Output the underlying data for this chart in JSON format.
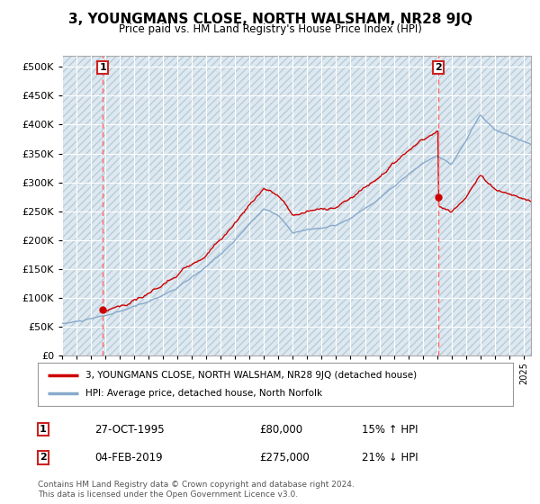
{
  "title": "3, YOUNGMANS CLOSE, NORTH WALSHAM, NR28 9JQ",
  "subtitle": "Price paid vs. HM Land Registry's House Price Index (HPI)",
  "legend_line1": "3, YOUNGMANS CLOSE, NORTH WALSHAM, NR28 9JQ (detached house)",
  "legend_line2": "HPI: Average price, detached house, North Norfolk",
  "annotation1_label": "1",
  "annotation1_date": "27-OCT-1995",
  "annotation1_price": "£80,000",
  "annotation1_hpi": "15% ↑ HPI",
  "annotation2_label": "2",
  "annotation2_date": "04-FEB-2019",
  "annotation2_price": "£275,000",
  "annotation2_hpi": "21% ↓ HPI",
  "footnote_line1": "Contains HM Land Registry data © Crown copyright and database right 2024.",
  "footnote_line2": "This data is licensed under the Open Government Licence v3.0.",
  "sale1_year": 1995.83,
  "sale1_price": 80000,
  "sale2_year": 2019.09,
  "sale2_price": 275000,
  "fig_bg_color": "#ffffff",
  "plot_bg_color": "#dde8f0",
  "hatch_edgecolor": "#b8ccd8",
  "red_line_color": "#cc0000",
  "blue_line_color": "#88aacc",
  "dashed_line_color": "#ff6666",
  "grid_color": "#ffffff",
  "ylim_min": 0,
  "ylim_max": 520000,
  "xmin": 1993,
  "xmax": 2025.5
}
